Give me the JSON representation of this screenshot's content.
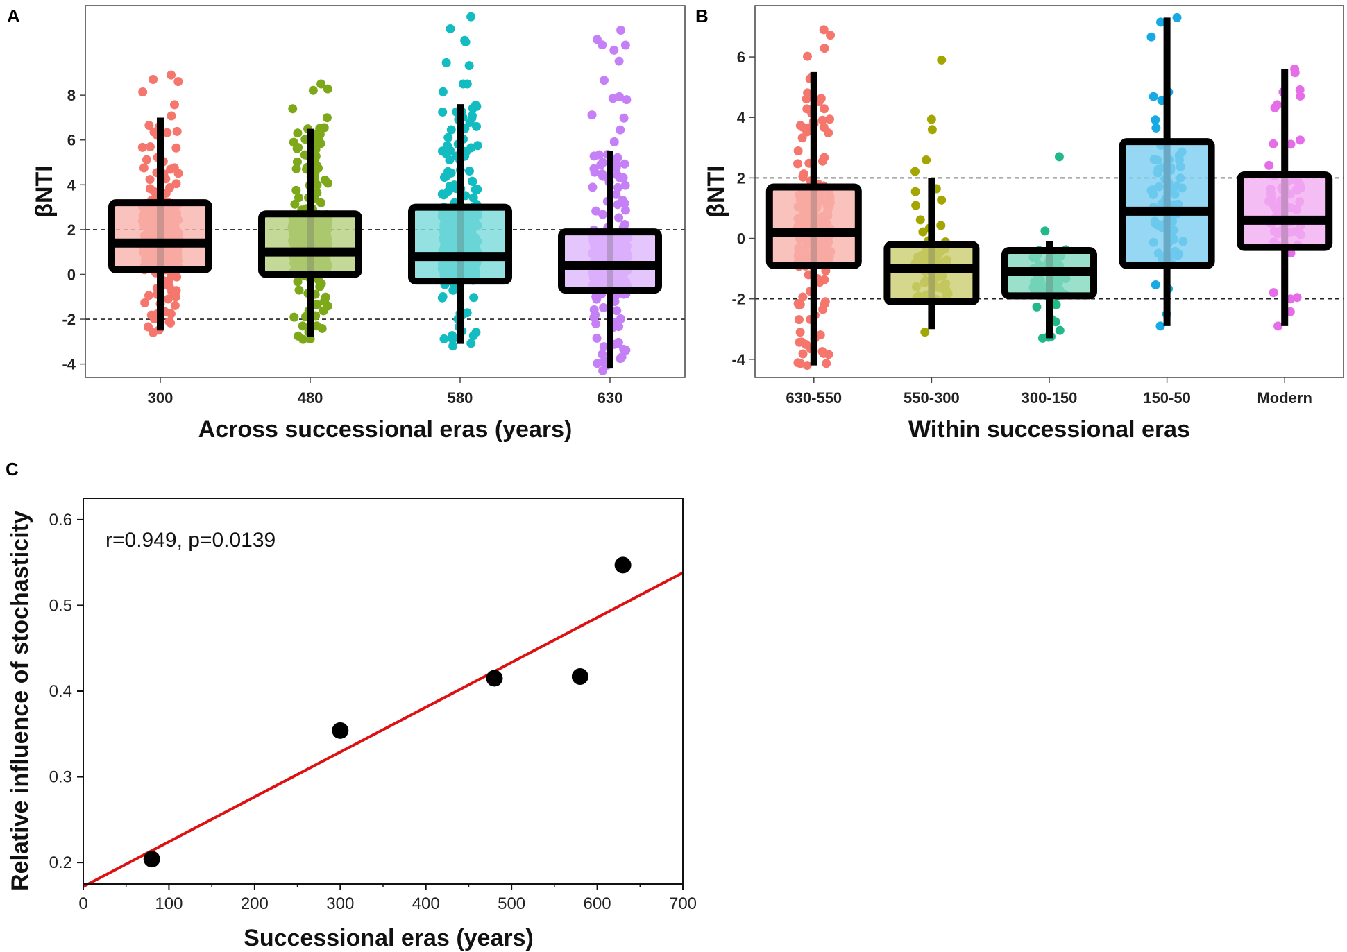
{
  "chart_data": [
    {
      "panel": "A",
      "type": "box",
      "title": "",
      "xlabel": "Across successional eras (years)",
      "ylabel": "βNTI",
      "categories": [
        "300",
        "480",
        "580",
        "630"
      ],
      "colors": [
        "#f4766c",
        "#7ca81a",
        "#13bcc0",
        "#c57ff7"
      ],
      "boxes": [
        {
          "whisker_low": -2.5,
          "q1": 0.2,
          "median": 1.4,
          "q3": 3.2,
          "whisker_high": 7.0,
          "point_min": -2.6,
          "point_max": 8.9
        },
        {
          "whisker_low": -2.8,
          "q1": 0.0,
          "median": 1.0,
          "q3": 2.7,
          "whisker_high": 6.5,
          "point_min": -2.9,
          "point_max": 8.5
        },
        {
          "whisker_low": -3.1,
          "q1": -0.3,
          "median": 0.8,
          "q3": 3.0,
          "whisker_high": 7.6,
          "point_min": -3.2,
          "point_max": 11.5
        },
        {
          "whisker_low": -4.2,
          "q1": -0.7,
          "median": 0.4,
          "q3": 1.9,
          "whisker_high": 5.5,
          "point_min": -4.3,
          "point_max": 10.9
        }
      ],
      "ylim": [
        -4.6,
        12.0
      ],
      "yticks": [
        -4,
        -2,
        0,
        2,
        4,
        6,
        8
      ],
      "reference_lines": [
        2,
        -2
      ]
    },
    {
      "panel": "B",
      "type": "box",
      "title": "",
      "xlabel": "Within successional eras",
      "ylabel": "βNTI",
      "categories": [
        "630-550",
        "550-300",
        "300-150",
        "150-50",
        "Modern"
      ],
      "colors": [
        "#f4766c",
        "#a3a500",
        "#21b98a",
        "#17a9e4",
        "#e56ee8"
      ],
      "boxes": [
        {
          "whisker_low": -4.2,
          "q1": -0.9,
          "median": 0.2,
          "q3": 1.7,
          "whisker_high": 5.5,
          "point_min": -4.2,
          "point_max": 6.9
        },
        {
          "whisker_low": -3.0,
          "q1": -2.1,
          "median": -1.0,
          "q3": -0.2,
          "whisker_high": 2.0,
          "point_min": -3.1,
          "point_max": 5.9
        },
        {
          "whisker_low": -3.3,
          "q1": -1.9,
          "median": -1.1,
          "q3": -0.4,
          "whisker_high": -0.1,
          "point_min": -3.3,
          "point_max": 2.7
        },
        {
          "whisker_low": -2.9,
          "q1": -0.9,
          "median": 0.9,
          "q3": 3.2,
          "whisker_high": 7.3,
          "point_min": -2.9,
          "point_max": 7.3
        },
        {
          "whisker_low": -2.9,
          "q1": -0.3,
          "median": 0.6,
          "q3": 2.1,
          "whisker_high": 5.6,
          "point_min": -2.9,
          "point_max": 5.6
        }
      ],
      "ylim": [
        -4.6,
        7.7
      ],
      "yticks": [
        -4,
        -2,
        0,
        2,
        4,
        6
      ],
      "reference_lines": [
        2,
        -2
      ]
    },
    {
      "panel": "C",
      "type": "scatter",
      "title": "",
      "xlabel": "Successional eras (years)",
      "ylabel": "Relative influence of stochasticity",
      "annotation": "r=0.949, p=0.0139",
      "points": [
        {
          "x": 80,
          "y": 0.204
        },
        {
          "x": 300,
          "y": 0.354
        },
        {
          "x": 480,
          "y": 0.415
        },
        {
          "x": 580,
          "y": 0.417
        },
        {
          "x": 630,
          "y": 0.547
        }
      ],
      "fit_line": {
        "slope": 0.000523,
        "intercept": 0.172,
        "color": "#dd1111"
      },
      "xlim": [
        0,
        700
      ],
      "ylim": [
        0.175,
        0.625
      ],
      "xticks": [
        0,
        100,
        200,
        300,
        400,
        500,
        600,
        700
      ],
      "yticks": [
        0.2,
        0.3,
        0.4,
        0.5,
        0.6
      ]
    }
  ]
}
